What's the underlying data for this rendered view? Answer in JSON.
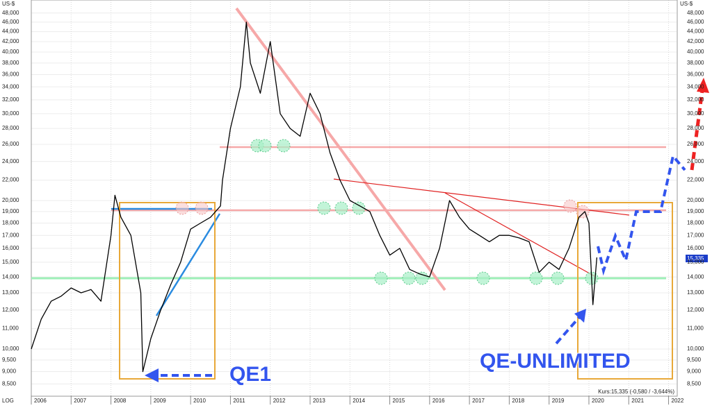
{
  "chart_data": {
    "type": "line",
    "scale": "log",
    "grid": true,
    "color": "#000000",
    "unit_label": "US-$",
    "scale_label": "LOG",
    "info_label": "Kurs:15,335 (-0,580 / -3,644%)",
    "current_price_label": "15,335",
    "annotations": [
      "QE1",
      "QE-UNLIMITED"
    ],
    "x": [
      2006.0,
      2006.25,
      2006.5,
      2006.75,
      2007.0,
      2007.25,
      2007.5,
      2007.75,
      2008.0,
      2008.1,
      2008.25,
      2008.5,
      2008.75,
      2008.8,
      2009.0,
      2009.25,
      2009.5,
      2009.75,
      2010.0,
      2010.25,
      2010.5,
      2010.75,
      2010.8,
      2011.0,
      2011.25,
      2011.4,
      2011.5,
      2011.75,
      2012.0,
      2012.25,
      2012.5,
      2012.75,
      2013.0,
      2013.25,
      2013.5,
      2013.75,
      2014.0,
      2014.25,
      2014.5,
      2014.75,
      2015.0,
      2015.25,
      2015.5,
      2015.75,
      2016.0,
      2016.25,
      2016.5,
      2016.75,
      2017.0,
      2017.25,
      2017.5,
      2017.75,
      2018.0,
      2018.25,
      2018.5,
      2018.75,
      2019.0,
      2019.25,
      2019.5,
      2019.75,
      2019.9,
      2020.0,
      2020.1,
      2020.2
    ],
    "values": [
      10000,
      11500,
      12500,
      12800,
      13300,
      13000,
      13200,
      12500,
      17000,
      20500,
      18500,
      17000,
      13000,
      9000,
      10500,
      12000,
      13500,
      15000,
      17500,
      18000,
      18500,
      19500,
      22000,
      28000,
      34000,
      46000,
      38000,
      33000,
      42000,
      30000,
      28000,
      27000,
      33000,
      30000,
      25000,
      22000,
      20000,
      19500,
      19000,
      17000,
      15500,
      16000,
      14500,
      14200,
      14000,
      16000,
      20000,
      18500,
      17500,
      17000,
      16500,
      17000,
      17000,
      16800,
      16500,
      14300,
      15000,
      14500,
      16000,
      18500,
      19000,
      18000,
      12300,
      15335
    ],
    "xlim": [
      2006,
      2022.2
    ],
    "xticks": [
      2006,
      2007,
      2008,
      2009,
      2010,
      2011,
      2012,
      2013,
      2014,
      2015,
      2016,
      2017,
      2018,
      2019,
      2020,
      2021,
      2022
    ],
    "ylim": [
      8050,
      51000
    ],
    "yticks": [
      {
        "value": 8500,
        "label": "8,500"
      },
      {
        "value": 9000,
        "label": "9,000"
      },
      {
        "value": 9500,
        "label": "9,500"
      },
      {
        "value": 10000,
        "label": "10,000"
      },
      {
        "value": 11000,
        "label": "11,000"
      },
      {
        "value": 12000,
        "label": "12,000"
      },
      {
        "value": 13000,
        "label": "13,000"
      },
      {
        "value": 14000,
        "label": "14,000"
      },
      {
        "value": 15000,
        "label": "15,000"
      },
      {
        "value": 16000,
        "label": "16,000"
      },
      {
        "value": 17000,
        "label": "17,000"
      },
      {
        "value": 18000,
        "label": "18,000"
      },
      {
        "value": 19000,
        "label": "19,000"
      },
      {
        "value": 20000,
        "label": "20,000"
      },
      {
        "value": 22000,
        "label": "22,000"
      },
      {
        "value": 24000,
        "label": "24,000"
      },
      {
        "value": 26000,
        "label": "26,000"
      },
      {
        "value": 28000,
        "label": "28,000"
      },
      {
        "value": 30000,
        "label": "30,000"
      },
      {
        "value": 32000,
        "label": "32,000"
      },
      {
        "value": 34000,
        "label": "34,000"
      },
      {
        "value": 36000,
        "label": "36,000"
      },
      {
        "value": 38000,
        "label": "38,000"
      },
      {
        "value": 40000,
        "label": "40,000"
      },
      {
        "value": 42000,
        "label": "42,000"
      },
      {
        "value": 44000,
        "label": "44,000"
      },
      {
        "value": 46000,
        "label": "46,000"
      },
      {
        "value": 48000,
        "label": "48,000"
      }
    ]
  }
}
